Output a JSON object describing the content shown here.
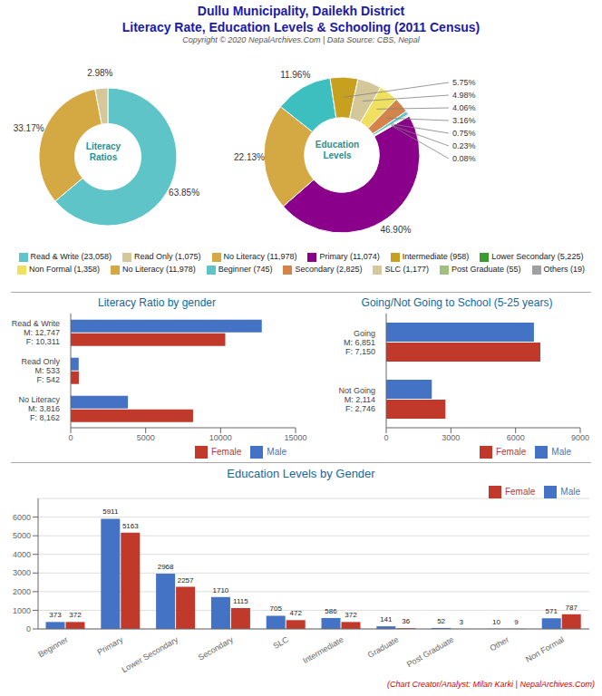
{
  "title": "Dullu Municipality, Dailekh District",
  "subtitle": "Literacy Rate, Education Levels & Schooling (2011 Census)",
  "annotations": [
    "Copyright © 2020 NepalArchives.Com | Data Source: CBS, Nepal",
    "(Chart Creator/Analyst: Milan Karki | NepalArchives.Com)"
  ],
  "chart_data": [
    {
      "type": "pie",
      "values": [
        63.85,
        33.17,
        2.98
      ],
      "value_labels": [
        "63.85%",
        "33.17%",
        "2.98%"
      ],
      "colors": [
        "#5fc4c8",
        "#d4a843",
        "#d4c89a"
      ],
      "data_labels": true,
      "annotations": [
        "Literacy\nRatios"
      ]
    },
    {
      "type": "pie",
      "values": [
        46.9,
        22.13,
        11.96,
        5.75,
        4.98,
        4.06,
        3.16,
        0.75,
        0.23,
        0.08,
        0.08
      ],
      "value_labels": [
        "46.90%",
        "22.13%",
        "11.96%",
        "5.75%",
        "4.98%",
        "4.06%",
        "3.16%",
        "0.75%",
        "0.23%",
        "0.08%",
        null
      ],
      "colors": [
        "#8b008b",
        "#d4a843",
        "#3dbfbf",
        "#c8a020",
        "#d4c89a",
        "#f0e060",
        "#d4844a",
        "#5fc4c8",
        "#4a7f4a",
        "#2a8a2a",
        "#a0a0a0"
      ],
      "data_labels": true,
      "annotations": [
        "Education\nLevels"
      ]
    },
    {
      "type": "legend",
      "series": [
        {
          "name": "Read & Write (23,058)",
          "color": "#5fc4c8"
        },
        {
          "name": "Read Only (1,075)",
          "color": "#d4c89a"
        },
        {
          "name": "No Literacy (11,978)",
          "color": "#d4a843"
        },
        {
          "name": "Primary (11,074)",
          "color": "#8b008b"
        },
        {
          "name": "Intermediate (958)",
          "color": "#c8a020"
        },
        {
          "name": "Lower Secondary (5,225)",
          "color": "#3a9a30"
        },
        {
          "name": "Non Formal (1,358)",
          "color": "#f0e060"
        },
        {
          "name": "No Literacy (11,978)",
          "color": "#d4a843"
        },
        {
          "name": "Beginner (745)",
          "color": "#5fc4c8"
        },
        {
          "name": "Secondary (2,825)",
          "color": "#d4844a"
        },
        {
          "name": "SLC (1,177)",
          "color": "#d4c89a"
        },
        {
          "name": "Post Graduate (55)",
          "color": "#a0c080"
        },
        {
          "name": "Others (19)",
          "color": "#a0a0a0"
        }
      ]
    },
    {
      "type": "bar",
      "orientation": "horizontal",
      "title": "Literacy Ratio by gender",
      "categories": [
        "Read & Write\nM: 12,747\nF: 10,311",
        "Read Only\nM: 533\nF: 542",
        "No Literacy\nM: 3,816\nF: 8,162"
      ],
      "series": [
        {
          "name": "Male",
          "color": "#4472c4",
          "values": [
            12747,
            533,
            3816
          ]
        },
        {
          "name": "Female",
          "color": "#c0392b",
          "values": [
            10311,
            542,
            8162
          ]
        }
      ],
      "xlim": [
        0,
        15000
      ],
      "xticks": [
        0,
        5000,
        10000,
        15000
      ],
      "grid": false,
      "legend": "lower right"
    },
    {
      "type": "bar",
      "orientation": "horizontal",
      "title": "Going/Not Going to School (5-25 years)",
      "categories": [
        "Going\nM: 6,851\nF: 7,150",
        "Not Going\nM: 2,114\nF: 2,746"
      ],
      "series": [
        {
          "name": "Male",
          "color": "#4472c4",
          "values": [
            6851,
            2114
          ]
        },
        {
          "name": "Female",
          "color": "#c0392b",
          "values": [
            7150,
            2746
          ]
        }
      ],
      "xlim": [
        0,
        9000
      ],
      "xticks": [
        0,
        3000,
        6000,
        9000
      ],
      "grid": false,
      "legend": "lower right"
    },
    {
      "type": "bar",
      "title": "Education Levels by Gender",
      "categories": [
        "Beginner",
        "Primary",
        "Lower Secondary",
        "Secondary",
        "SLC",
        "Intermediate",
        "Graduate",
        "Post Graduate",
        "Other",
        "Non Formal"
      ],
      "series": [
        {
          "name": "Male",
          "color": "#4472c4",
          "values": [
            373,
            5911,
            2968,
            1710,
            705,
            586,
            141,
            52,
            10,
            571
          ]
        },
        {
          "name": "Female",
          "color": "#c0392b",
          "values": [
            372,
            5163,
            2257,
            1115,
            472,
            372,
            36,
            3,
            9,
            787
          ]
        }
      ],
      "ylim": [
        0,
        7000
      ],
      "yticks": [
        0,
        1000,
        2000,
        3000,
        4000,
        5000,
        6000
      ],
      "grid": true,
      "legend": "upper right",
      "data_labels": true
    }
  ]
}
